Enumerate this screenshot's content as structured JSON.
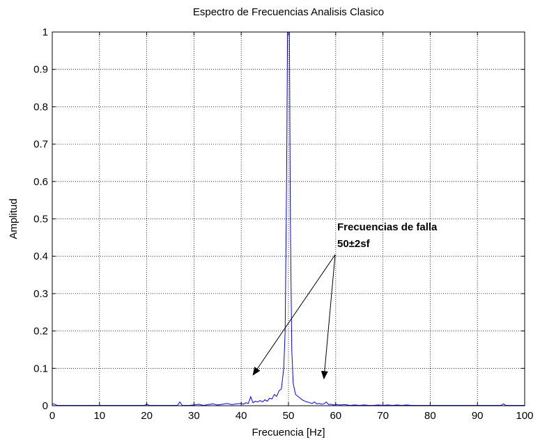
{
  "chart_data": {
    "type": "line",
    "title": "Espectro de Frecuencias Analisis Clasico",
    "xlabel": "Frecuencia [Hz]",
    "ylabel": "Amplitud",
    "xlim": [
      0,
      100
    ],
    "ylim": [
      0,
      1
    ],
    "xticks": [
      0,
      10,
      20,
      30,
      40,
      50,
      60,
      70,
      80,
      90,
      100
    ],
    "yticks": [
      0,
      0.1,
      0.2,
      0.3,
      0.4,
      0.5,
      0.6,
      0.7,
      0.8,
      0.9,
      1
    ],
    "xtick_labels": [
      "0",
      "10",
      "20",
      "30",
      "40",
      "50",
      "60",
      "70",
      "80",
      "90",
      "100"
    ],
    "ytick_labels": [
      "0",
      "0.1",
      "0.2",
      "0.3",
      "0.4",
      "0.5",
      "0.6",
      "0.7",
      "0.8",
      "0.9",
      "1"
    ],
    "grid": true,
    "line_color": "#0000ff",
    "series": [
      {
        "x": [
          0,
          0.5,
          1,
          2,
          3,
          5,
          8,
          10,
          12,
          15,
          18,
          19.5,
          20,
          20.5,
          22,
          25,
          26.5,
          27,
          27.5,
          29,
          30,
          31,
          32,
          33,
          34,
          35,
          36,
          37,
          38,
          39,
          40,
          40.5,
          41,
          41.5,
          42,
          42.5,
          43,
          43.5,
          44,
          44.5,
          45,
          45.5,
          46,
          46.5,
          47,
          47.5,
          48,
          48.5,
          49,
          49.3,
          49.6,
          49.8,
          50,
          50.2,
          50.4,
          50.7,
          51,
          51.5,
          52,
          52.5,
          53,
          53.5,
          54,
          54.5,
          55,
          55.5,
          56,
          56.5,
          57,
          57.5,
          58,
          58.5,
          59,
          59.5,
          60,
          61,
          62,
          63,
          64,
          65,
          66,
          67,
          68,
          69,
          70,
          71,
          72,
          73,
          74,
          75,
          76,
          77,
          78,
          80,
          82,
          84,
          86,
          88,
          90,
          92,
          94,
          95,
          95.5,
          96,
          97,
          98,
          100
        ],
        "y": [
          0.005,
          0.004,
          0.001,
          0.001,
          0.001,
          0.001,
          0.001,
          0.001,
          0.001,
          0.001,
          0.001,
          0.001,
          0.004,
          0.001,
          0.001,
          0.001,
          0.001,
          0.01,
          0.001,
          0.001,
          0.002,
          0.004,
          0.001,
          0.003,
          0.005,
          0.002,
          0.004,
          0.006,
          0.003,
          0.005,
          0.006,
          0.004,
          0.008,
          0.006,
          0.024,
          0.008,
          0.012,
          0.01,
          0.014,
          0.01,
          0.016,
          0.012,
          0.02,
          0.018,
          0.03,
          0.025,
          0.04,
          0.045,
          0.1,
          0.2,
          0.6,
          1.0,
          1.0,
          1.0,
          0.5,
          0.15,
          0.06,
          0.03,
          0.025,
          0.02,
          0.015,
          0.012,
          0.01,
          0.008,
          0.006,
          0.01,
          0.005,
          0.006,
          0.004,
          0.005,
          0.01,
          0.003,
          0.004,
          0.002,
          0.003,
          0.002,
          0.003,
          0.001,
          0.002,
          0.001,
          0.002,
          0.001,
          0.001,
          0.002,
          0.001,
          0.002,
          0.001,
          0.002,
          0.001,
          0.002,
          0.001,
          0.001,
          0.001,
          0.001,
          0.001,
          0.001,
          0.001,
          0.001,
          0.001,
          0.001,
          0.001,
          0.001,
          0.005,
          0.001,
          0.001,
          0.001,
          0.001
        ]
      }
    ],
    "annotation": {
      "line1": "Frecuencias de falla",
      "line2": "50±2sf",
      "arrow_targets": [
        {
          "x": 42.5,
          "y": 0.03
        },
        {
          "x": 57.5,
          "y": 0.02
        }
      ]
    }
  }
}
